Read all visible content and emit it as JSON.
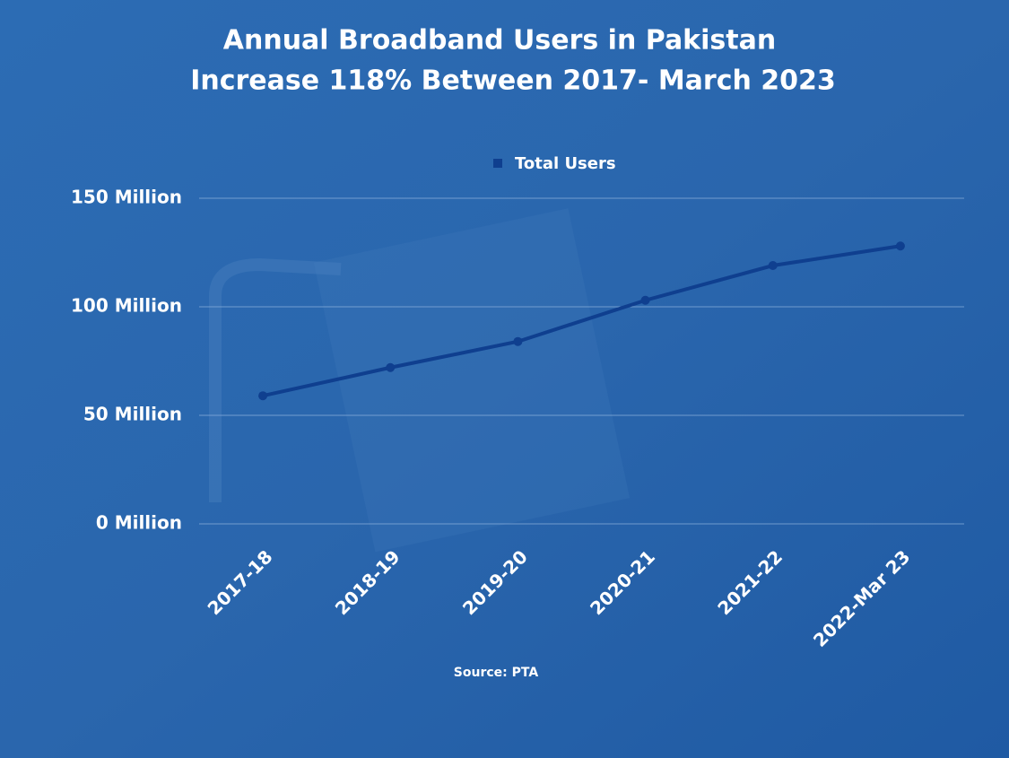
{
  "chart_data": {
    "type": "line",
    "title": [
      "Annual Broadband Users in Pakistan",
      "Increase 118% Between 2017- March 2023"
    ],
    "categories": [
      "2017-18",
      "2018-19",
      "2019-20",
      "2020-21",
      "2021-22",
      "2022-Mar 23"
    ],
    "series": [
      {
        "name": "Total Users",
        "color": "#0f3f8f",
        "values": [
          59,
          72,
          84,
          103,
          119,
          128
        ]
      }
    ],
    "ylim": [
      0,
      150
    ],
    "yticks": [
      {
        "value": 0,
        "label": "0 Million"
      },
      {
        "value": 50,
        "label": "50 Million"
      },
      {
        "value": 100,
        "label": "100 Million"
      },
      {
        "value": 150,
        "label": "150 Million"
      }
    ],
    "grid": true,
    "legend": "top",
    "source": "Source: PTA"
  }
}
